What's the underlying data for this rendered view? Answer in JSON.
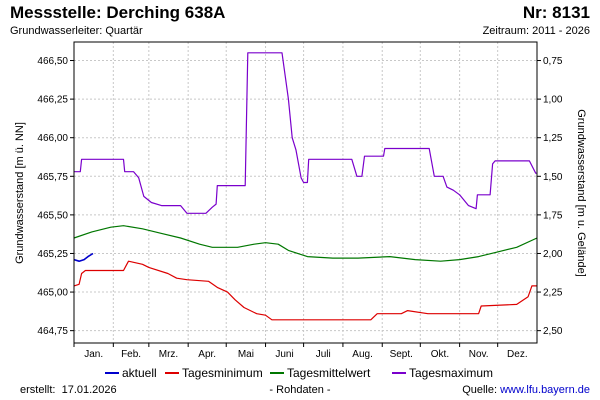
{
  "header": {
    "title": "Messstelle: Derching 638A",
    "number": "Nr: 8131",
    "aquifer": "Grundwasserleiter: Quartär",
    "period": "Zeitraum: 2011 - 2026"
  },
  "footer": {
    "created_label": "erstellt:",
    "created_date": "17.01.2026",
    "raw_note": "- Rohdaten -",
    "source_label": "Quelle:",
    "source_url": "www.lfu.bayern.de"
  },
  "colors": {
    "aktuell": "#0000cc",
    "min": "#dd0000",
    "mean": "#007700",
    "max": "#7a00cc",
    "grid": "#c8c8c8"
  },
  "chart_data": {
    "type": "line",
    "xlabel": "",
    "ylabel": "Grundwasserstand [m ü. NN]",
    "ylabel_right": "Grundwasserstand [m u. Gelände]",
    "ylim": [
      464.67,
      466.62
    ],
    "yticks": [
      "466,50",
      "466,25",
      "466,00",
      "465,75",
      "465,50",
      "465,25",
      "465,00",
      "464,75"
    ],
    "ytick_values": [
      466.5,
      466.25,
      466.0,
      465.75,
      465.5,
      465.25,
      465.0,
      464.75
    ],
    "yticks_right": [
      "0,75",
      "1,00",
      "1,25",
      "1,50",
      "1,75",
      "2,00",
      "2,25",
      "2,50"
    ],
    "ground_level": 467.25,
    "x_range": [
      1,
      366
    ],
    "months": [
      {
        "label": "Jan.",
        "start": 1
      },
      {
        "label": "Feb.",
        "start": 32
      },
      {
        "label": "Mrz.",
        "start": 60
      },
      {
        "label": "Apr.",
        "start": 91
      },
      {
        "label": "Mai",
        "start": 121
      },
      {
        "label": "Juni",
        "start": 152
      },
      {
        "label": "Juli",
        "start": 182
      },
      {
        "label": "Aug.",
        "start": 213
      },
      {
        "label": "Sept.",
        "start": 244
      },
      {
        "label": "Okt.",
        "start": 274
      },
      {
        "label": "Nov.",
        "start": 305
      },
      {
        "label": "Dez.",
        "start": 335
      }
    ],
    "series": [
      {
        "name": "aktuell",
        "color_key": "aktuell",
        "points": [
          [
            1,
            465.21
          ],
          [
            5,
            465.2
          ],
          [
            9,
            465.21
          ],
          [
            12,
            465.23
          ],
          [
            16,
            465.25
          ]
        ]
      },
      {
        "name": "Tagesminimum",
        "color_key": "min",
        "points": [
          [
            1,
            465.04
          ],
          [
            5,
            465.05
          ],
          [
            7,
            465.12
          ],
          [
            10,
            465.14
          ],
          [
            40,
            465.14
          ],
          [
            42,
            465.17
          ],
          [
            44,
            465.2
          ],
          [
            55,
            465.18
          ],
          [
            60,
            465.16
          ],
          [
            75,
            465.12
          ],
          [
            82,
            465.09
          ],
          [
            90,
            465.08
          ],
          [
            107,
            465.07
          ],
          [
            114,
            465.03
          ],
          [
            122,
            465.0
          ],
          [
            128,
            464.95
          ],
          [
            135,
            464.9
          ],
          [
            145,
            464.86
          ],
          [
            152,
            464.85
          ],
          [
            157,
            464.82
          ],
          [
            235,
            464.82
          ],
          [
            240,
            464.86
          ],
          [
            259,
            464.86
          ],
          [
            264,
            464.88
          ],
          [
            280,
            464.86
          ],
          [
            320,
            464.86
          ],
          [
            322,
            464.91
          ],
          [
            350,
            464.92
          ],
          [
            359,
            464.97
          ],
          [
            362,
            465.04
          ],
          [
            366,
            465.04
          ]
        ]
      },
      {
        "name": "Tagesmittelwert",
        "color_key": "mean",
        "points": [
          [
            1,
            465.35
          ],
          [
            15,
            465.39
          ],
          [
            30,
            465.42
          ],
          [
            40,
            465.43
          ],
          [
            55,
            465.41
          ],
          [
            70,
            465.38
          ],
          [
            85,
            465.35
          ],
          [
            100,
            465.31
          ],
          [
            110,
            465.29
          ],
          [
            130,
            465.29
          ],
          [
            143,
            465.31
          ],
          [
            152,
            465.32
          ],
          [
            162,
            465.31
          ],
          [
            170,
            465.27
          ],
          [
            185,
            465.23
          ],
          [
            205,
            465.22
          ],
          [
            225,
            465.22
          ],
          [
            250,
            465.23
          ],
          [
            270,
            465.21
          ],
          [
            290,
            465.2
          ],
          [
            305,
            465.21
          ],
          [
            320,
            465.23
          ],
          [
            335,
            465.26
          ],
          [
            350,
            465.29
          ],
          [
            366,
            465.35
          ]
        ]
      },
      {
        "name": "Tagesmaximum",
        "color_key": "max",
        "points": [
          [
            1,
            465.78
          ],
          [
            6,
            465.78
          ],
          [
            7,
            465.86
          ],
          [
            40,
            465.86
          ],
          [
            41,
            465.78
          ],
          [
            48,
            465.78
          ],
          [
            52,
            465.74
          ],
          [
            56,
            465.62
          ],
          [
            62,
            465.58
          ],
          [
            70,
            465.56
          ],
          [
            85,
            465.56
          ],
          [
            90,
            465.51
          ],
          [
            105,
            465.51
          ],
          [
            110,
            465.55
          ],
          [
            113,
            465.57
          ],
          [
            114,
            465.69
          ],
          [
            136,
            465.69
          ],
          [
            138,
            466.55
          ],
          [
            165,
            466.55
          ],
          [
            170,
            466.25
          ],
          [
            173,
            466.0
          ],
          [
            176,
            465.92
          ],
          [
            180,
            465.74
          ],
          [
            182,
            465.71
          ],
          [
            185,
            465.71
          ],
          [
            186,
            465.86
          ],
          [
            220,
            465.86
          ],
          [
            224,
            465.75
          ],
          [
            228,
            465.75
          ],
          [
            230,
            465.88
          ],
          [
            245,
            465.88
          ],
          [
            246,
            465.93
          ],
          [
            281,
            465.93
          ],
          [
            285,
            465.75
          ],
          [
            292,
            465.75
          ],
          [
            295,
            465.68
          ],
          [
            300,
            465.66
          ],
          [
            305,
            465.63
          ],
          [
            312,
            465.56
          ],
          [
            318,
            465.54
          ],
          [
            319,
            465.63
          ],
          [
            329,
            465.63
          ],
          [
            331,
            465.83
          ],
          [
            333,
            465.85
          ],
          [
            360,
            465.85
          ],
          [
            365,
            465.77
          ],
          [
            366,
            465.77
          ]
        ]
      }
    ]
  }
}
